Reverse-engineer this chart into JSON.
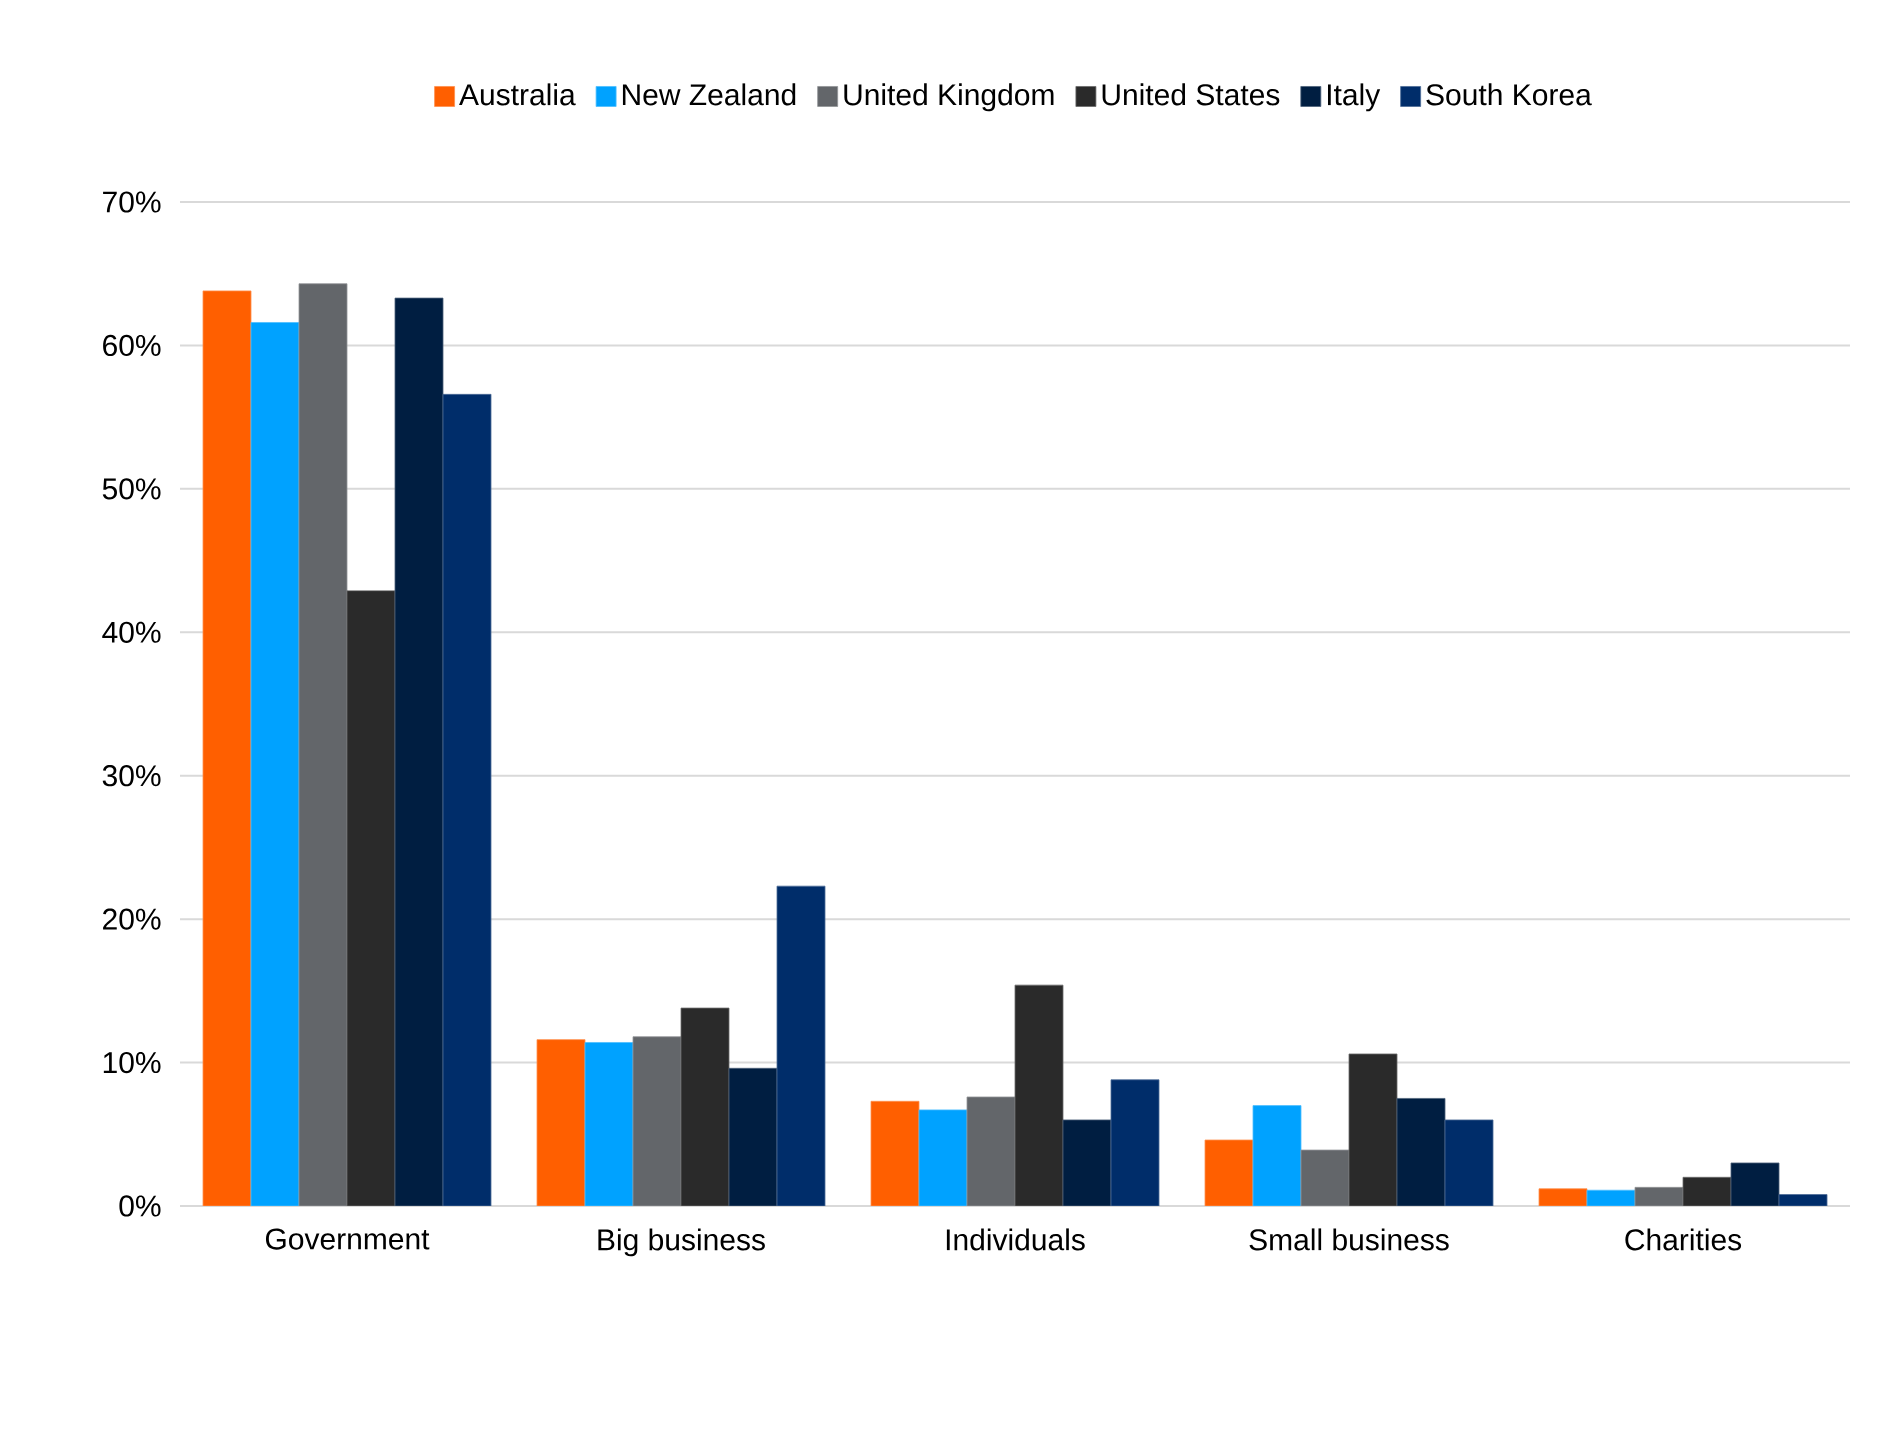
{
  "chart_data": {
    "type": "bar",
    "categories": [
      "Government",
      "Big business",
      "Individuals",
      "Small business",
      "Charities"
    ],
    "series": [
      {
        "name": "Australia",
        "color": "#ff5f00",
        "values": [
          63.8,
          11.6,
          7.3,
          4.6,
          1.2
        ]
      },
      {
        "name": "New Zealand",
        "color": "#00a2ff",
        "values": [
          61.6,
          11.4,
          6.7,
          7.0,
          1.1
        ]
      },
      {
        "name": "United Kingdom",
        "color": "#63666a",
        "values": [
          64.3,
          11.8,
          7.6,
          3.9,
          1.3
        ]
      },
      {
        "name": "United States",
        "color": "#2a2a2a",
        "values": [
          42.9,
          13.8,
          15.4,
          10.6,
          2.0
        ]
      },
      {
        "name": "Italy",
        "color": "#001e41",
        "values": [
          63.3,
          9.6,
          6.0,
          7.5,
          3.0
        ]
      },
      {
        "name": "South Korea",
        "color": "#002d6a",
        "values": [
          56.6,
          22.3,
          8.8,
          6.0,
          0.8
        ]
      }
    ],
    "ylim": [
      0,
      70
    ],
    "yticks": [
      {
        "value": 0,
        "label": "0%"
      },
      {
        "value": 10,
        "label": "10%"
      },
      {
        "value": 20,
        "label": "20%"
      },
      {
        "value": 30,
        "label": "30%"
      },
      {
        "value": 40,
        "label": "40%"
      },
      {
        "value": 50,
        "label": "50%"
      },
      {
        "value": 60,
        "label": "60%"
      },
      {
        "value": 70,
        "label": "70%"
      }
    ],
    "grid": "y",
    "legend": "top"
  }
}
